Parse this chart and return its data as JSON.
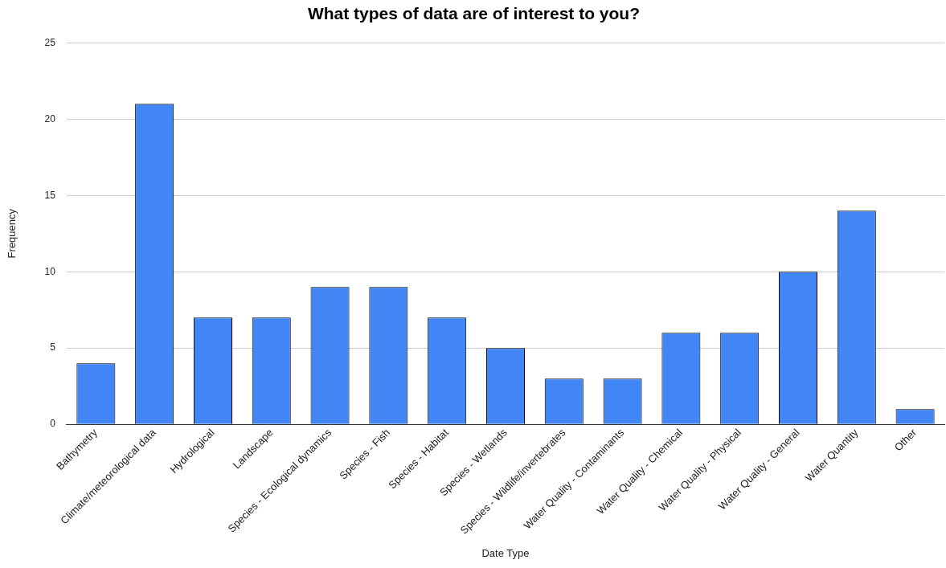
{
  "chart_data": {
    "type": "bar",
    "title": "What types of data are of interest to you?",
    "xlabel": "Date Type",
    "ylabel": "Frequency",
    "categories": [
      "Bathymetry",
      "Climate/meteorological data",
      "Hydrological",
      "Landscape",
      "Species - Ecological dynamics",
      "Species - Fish",
      "Species - Habitat",
      "Species - Wetlands",
      "Species - Wildlife/invertebrates",
      "Water Quality - Contaminants",
      "Water Quality - Chemical",
      "Water Quality - Physical",
      "Water Quality - General",
      "Water Quantity",
      "Other"
    ],
    "values": [
      4,
      21,
      7,
      7,
      9,
      9,
      7,
      5,
      3,
      3,
      6,
      6,
      10,
      14,
      1
    ],
    "color": "#4285f4",
    "ylim": [
      0,
      25
    ],
    "yticks": [
      0,
      5,
      10,
      15,
      20,
      25
    ],
    "grid": "y"
  }
}
